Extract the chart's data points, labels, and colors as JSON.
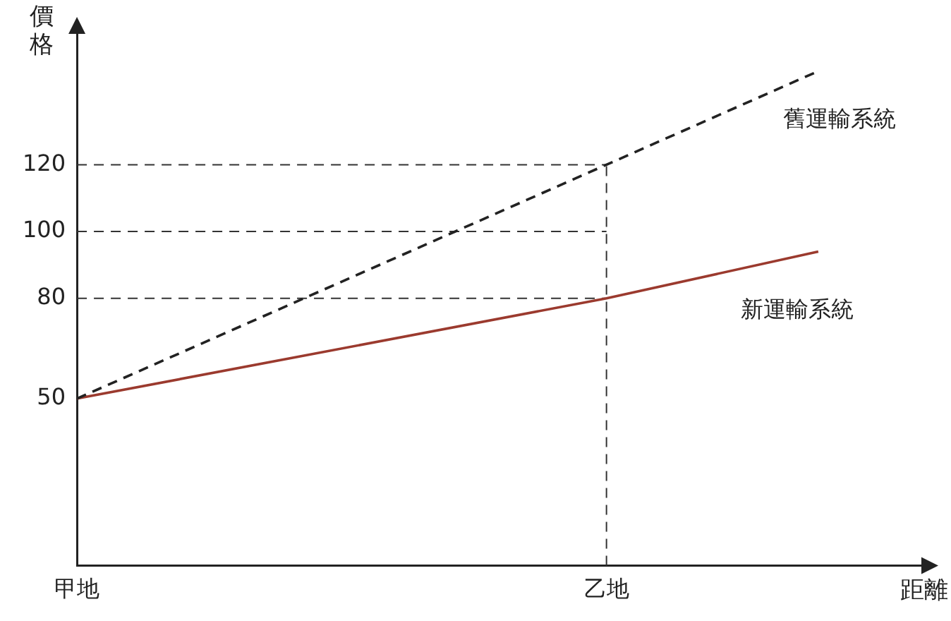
{
  "chart_data": {
    "type": "line",
    "xlabel": "距離",
    "ylabel": "價格",
    "categories": [
      "甲地",
      null,
      null,
      null,
      null,
      "乙地",
      null,
      null,
      null
    ],
    "series": [
      {
        "name": "舊運輸系統",
        "color": "#222222",
        "line_style": "dashed",
        "values": [
          50,
          null,
          null,
          null,
          null,
          120,
          null,
          148,
          null
        ]
      },
      {
        "name": "新運輸系統",
        "color": "#9b3a2e",
        "line_style": "solid",
        "values": [
          50,
          null,
          null,
          null,
          null,
          80,
          null,
          94,
          null
        ]
      }
    ],
    "ylim": [
      0,
      160
    ],
    "yticks": [
      50,
      80,
      100,
      120
    ],
    "ref_lines": [
      {
        "axis": "y",
        "value": 80,
        "color": "#333333",
        "line_style": "dashed"
      },
      {
        "axis": "y",
        "value": 100,
        "color": "#333333",
        "line_style": "dashed"
      },
      {
        "axis": "y",
        "value": 120,
        "color": "#333333",
        "line_style": "dashed"
      },
      {
        "axis": "x",
        "value": "乙地",
        "color": "#333333",
        "line_style": "dashed"
      }
    ],
    "grid": false,
    "legend": false,
    "marker": "none"
  }
}
